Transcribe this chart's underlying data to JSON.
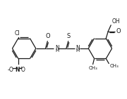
{
  "bg_color": "#ffffff",
  "line_color": "#1a1a1a",
  "line_width": 0.9,
  "figsize": [
    1.8,
    1.41
  ],
  "dpi": 100,
  "xlim": [
    0,
    180
  ],
  "ylim": [
    0,
    141
  ]
}
